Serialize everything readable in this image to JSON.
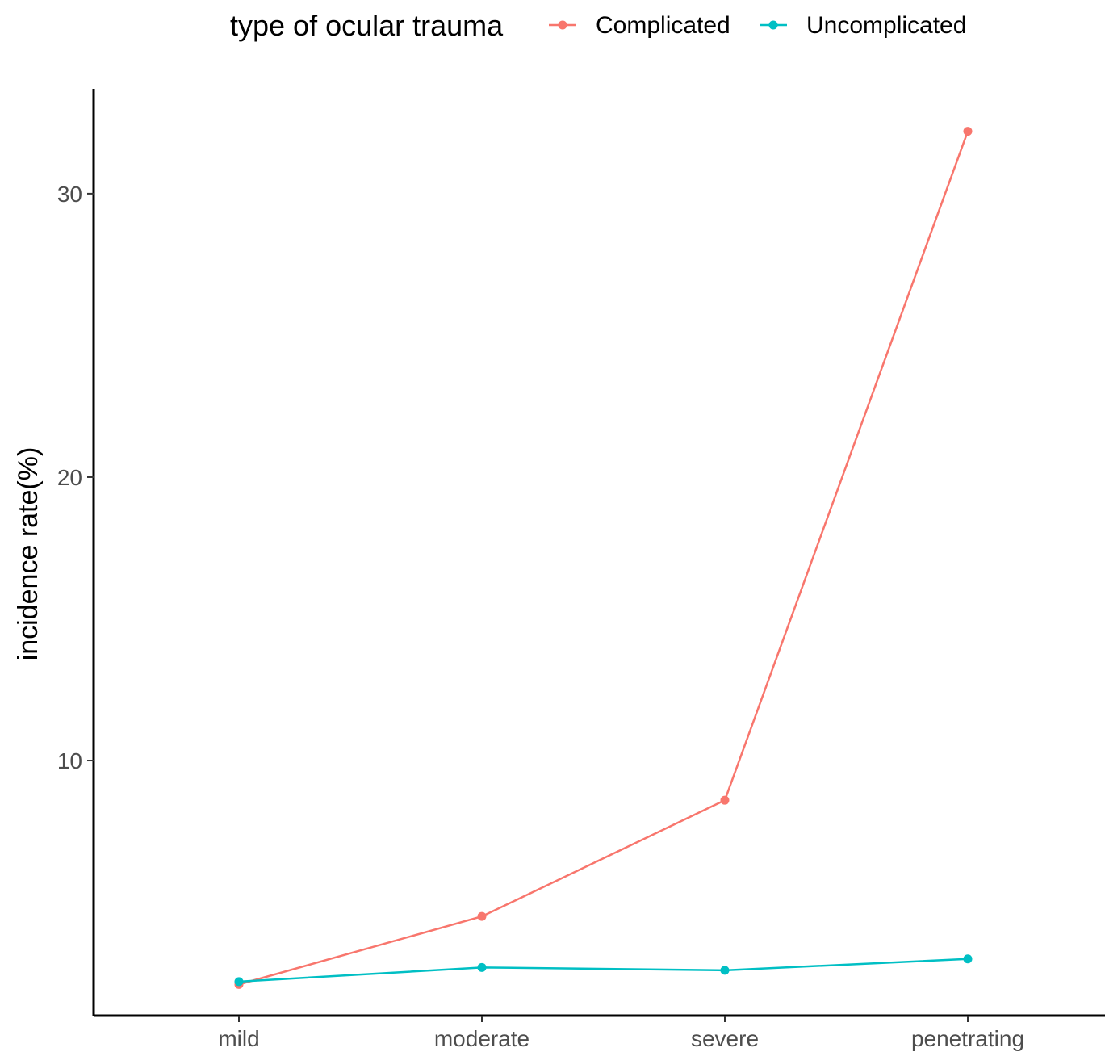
{
  "chart_data": {
    "type": "line",
    "categories": [
      "mild",
      "moderate",
      "severe",
      "penetrating"
    ],
    "series": [
      {
        "name": "Complicated",
        "color": "#F8766D",
        "values": [
          2.1,
          4.5,
          8.6,
          32.2
        ]
      },
      {
        "name": "Uncomplicated",
        "color": "#00BFC4",
        "values": [
          2.2,
          2.7,
          2.6,
          3.0
        ]
      }
    ],
    "title": "",
    "xlabel": "",
    "ylabel": "incidence rate(%)",
    "ylim": [
      1.0,
      33.7
    ],
    "yticks": [
      10,
      20,
      30
    ],
    "ytick_labels": [
      "10",
      "20",
      "30"
    ],
    "grid": false,
    "legend": {
      "title": "type of ocular trauma",
      "position": "top"
    }
  }
}
